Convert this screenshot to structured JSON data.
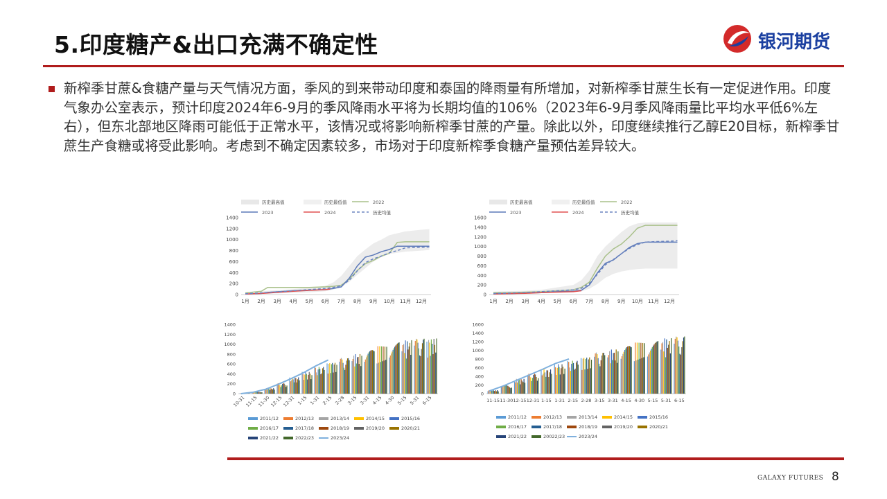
{
  "header": {
    "title": "5.印度糖产&出口充满不确定性",
    "brand": "银河期货"
  },
  "body_text": "新榨季甘蔗&食糖产量与天气情况方面，季风的到来带动印度和泰国的降雨量有所增加，对新榨季甘蔗生长有一定促进作用。印度气象办公室表示，预计印度2024年6-9月的季风降雨水平将为长期均值的106%（2023年6-9月季风降雨量比平均水平低6%左右），但东北部地区降雨可能低于正常水平，该情况或将影响新榨季甘蔗的产量。除此以外，印度继续推行乙醇E20目标，新榨季甘蔗生产食糖或将受此影响。考虑到不确定因素较多，市场对于印度新榨季食糖产量预估差异较大。",
  "footer": {
    "brand_en": "GALAXY FUTURES",
    "page": "8"
  },
  "colors": {
    "accent": "#b01c1c",
    "brand_blue": "#1a3fa0"
  },
  "chart_data": [
    {
      "type": "line",
      "categories": [
        "1月",
        "2月",
        "3月",
        "4月",
        "5月",
        "6月",
        "7月",
        "8月",
        "9月",
        "10月",
        "11月",
        "12月"
      ],
      "ylim": [
        0,
        1400
      ],
      "yticks": [
        0,
        200,
        400,
        600,
        800,
        1000,
        1200,
        1400
      ],
      "legend": [
        "历史最高值",
        "历史最低值",
        "2022",
        "2023",
        "2024",
        "历史均值"
      ],
      "band": {
        "x": [
          0,
          1,
          2,
          3,
          4,
          5,
          5.5,
          6,
          6.5,
          7,
          7.5,
          8,
          8.5,
          9,
          10,
          11,
          11.5
        ],
        "high": [
          40,
          60,
          80,
          100,
          120,
          160,
          220,
          340,
          520,
          700,
          820,
          930,
          1000,
          1080,
          1150,
          1180,
          1190
        ],
        "low": [
          0,
          10,
          20,
          30,
          40,
          60,
          90,
          140,
          230,
          360,
          480,
          600,
          680,
          740,
          780,
          800,
          810
        ]
      },
      "series": [
        {
          "name": "2022",
          "color": "#a9c08a",
          "dash": "",
          "x": [
            0,
            1,
            1.4,
            2,
            3,
            4,
            5,
            5.5,
            6,
            6.5,
            7,
            7.5,
            8,
            8.5,
            9,
            9.5,
            10,
            11,
            11.5
          ],
          "y": [
            30,
            60,
            130,
            130,
            130,
            130,
            140,
            150,
            170,
            280,
            440,
            560,
            620,
            700,
            750,
            950,
            960,
            960,
            960
          ]
        },
        {
          "name": "2023",
          "color": "#5a78b8",
          "dash": "",
          "x": [
            0,
            1,
            1.4,
            2,
            3,
            4,
            5,
            5.5,
            6,
            6.5,
            7,
            7.5,
            8,
            8.5,
            9,
            9.5,
            10,
            11,
            11.5
          ],
          "y": [
            10,
            20,
            40,
            50,
            70,
            80,
            90,
            110,
            140,
            300,
            520,
            680,
            720,
            780,
            820,
            880,
            880,
            880,
            880
          ]
        },
        {
          "name": "2024",
          "color": "#e05050",
          "dash": "",
          "x": [
            0,
            1,
            2,
            3,
            4,
            5,
            5.3
          ],
          "y": [
            10,
            20,
            40,
            60,
            75,
            90,
            100
          ]
        },
        {
          "name": "历史均值",
          "color": "#6a84c0",
          "dash": "4,3",
          "x": [
            0,
            1,
            2,
            3,
            4,
            5,
            5.5,
            6,
            6.5,
            7,
            7.5,
            8,
            8.5,
            9,
            9.5,
            10,
            11,
            11.5
          ],
          "y": [
            15,
            30,
            50,
            70,
            90,
            110,
            130,
            160,
            260,
            430,
            580,
            650,
            700,
            760,
            800,
            850,
            860,
            865
          ]
        }
      ]
    },
    {
      "type": "line",
      "categories": [
        "1月",
        "2月",
        "3月",
        "4月",
        "5月",
        "6月",
        "7月",
        "8月",
        "9月",
        "10月",
        "11月",
        "12月"
      ],
      "ylim": [
        0,
        1600
      ],
      "yticks": [
        0,
        200,
        400,
        600,
        800,
        1000,
        1200,
        1400,
        1600
      ],
      "legend": [
        "历史最高值",
        "历史最低值",
        "2022",
        "2023",
        "2024",
        "历史均值"
      ],
      "band": {
        "x": [
          0,
          1,
          2,
          3,
          4,
          5,
          5.5,
          6,
          6.5,
          7,
          7.5,
          8,
          8.5,
          9,
          9.5,
          10,
          11,
          11.5
        ],
        "high": [
          60,
          70,
          80,
          100,
          150,
          200,
          300,
          500,
          800,
          1000,
          1150,
          1300,
          1420,
          1480,
          1500,
          1500,
          1500,
          1500
        ],
        "low": [
          0,
          10,
          20,
          30,
          40,
          50,
          70,
          120,
          220,
          350,
          430,
          480,
          510,
          530,
          540,
          540,
          540,
          540
        ]
      },
      "series": [
        {
          "name": "2022",
          "color": "#a9c08a",
          "dash": "",
          "x": [
            0,
            1,
            2,
            3,
            4,
            5,
            5.5,
            6,
            6.5,
            7,
            7.5,
            8,
            8.5,
            9,
            9.5,
            10,
            11,
            11.5
          ],
          "y": [
            40,
            40,
            50,
            60,
            80,
            100,
            150,
            260,
            550,
            800,
            950,
            1050,
            1200,
            1380,
            1440,
            1440,
            1440,
            1440
          ]
        },
        {
          "name": "2023",
          "color": "#5a78b8",
          "dash": "",
          "x": [
            0,
            1,
            2,
            3,
            4,
            5,
            5.5,
            6,
            6.5,
            7,
            7.5,
            8,
            8.5,
            9,
            9.5,
            10,
            11,
            11.5
          ],
          "y": [
            20,
            20,
            30,
            40,
            60,
            70,
            90,
            200,
            450,
            650,
            720,
            850,
            980,
            1060,
            1090,
            1090,
            1090,
            1090
          ]
        },
        {
          "name": "2024",
          "color": "#e05050",
          "dash": "",
          "x": [
            0,
            1,
            2,
            3,
            4,
            5,
            5.5
          ],
          "y": [
            10,
            20,
            25,
            40,
            50,
            60,
            80
          ]
        },
        {
          "name": "历史均值",
          "color": "#6a84c0",
          "dash": "4,3",
          "x": [
            0,
            1,
            2,
            3,
            4,
            5,
            5.5,
            6,
            6.5,
            7,
            7.5,
            8,
            8.5,
            9,
            9.5,
            10,
            11,
            11.5
          ],
          "y": [
            20,
            30,
            40,
            60,
            80,
            100,
            130,
            230,
            420,
            620,
            730,
            850,
            960,
            1040,
            1090,
            1100,
            1110,
            1120
          ]
        }
      ]
    },
    {
      "type": "bar",
      "categories": [
        "10-31",
        "11-15",
        "11-30",
        "12-15",
        "12-31",
        "1-15",
        "1-31",
        "2-15",
        "2-28",
        "3-15",
        "3-31",
        "4-15",
        "4-30",
        "5-15",
        "5-31",
        "6-15"
      ],
      "ylim": [
        0,
        1400
      ],
      "yticks": [
        0,
        200,
        400,
        600,
        800,
        1000,
        1200,
        1400
      ],
      "series": [
        {
          "name": "2011/12",
          "color": "#5b9bd5"
        },
        {
          "name": "2012/13",
          "color": "#ed7d31"
        },
        {
          "name": "2013/14",
          "color": "#a5a5a5"
        },
        {
          "name": "2014/15",
          "color": "#ffc000"
        },
        {
          "name": "2015/16",
          "color": "#4472c4"
        },
        {
          "name": "2016/17",
          "color": "#70ad47"
        },
        {
          "name": "2017/18",
          "color": "#255e91"
        },
        {
          "name": "2018/19",
          "color": "#9e480e"
        },
        {
          "name": "2019/20",
          "color": "#636363"
        },
        {
          "name": "2020/21",
          "color": "#997300"
        },
        {
          "name": "2021/22",
          "color": "#264478"
        },
        {
          "name": "2022/23",
          "color": "#43682b"
        },
        {
          "name": "2023/24",
          "color": "#7fb0dd"
        }
      ],
      "totals": [
        5,
        40,
        110,
        210,
        330,
        440,
        540,
        640,
        720,
        800,
        880,
        960,
        1040,
        1080,
        1110,
        1120
      ],
      "line_2023_24": [
        0,
        30,
        90,
        190,
        300,
        420,
        560,
        680
      ]
    },
    {
      "type": "bar",
      "categories": [
        "11-15",
        "11-30",
        "12-15",
        "12-31",
        "1-15",
        "1-31",
        "2-15",
        "2-28",
        "3-15",
        "3-31",
        "4-15",
        "4-30",
        "5-15",
        "5-31",
        "6-15"
      ],
      "ylim": [
        0,
        1600
      ],
      "yticks": [
        0,
        200,
        400,
        600,
        800,
        1000,
        1200,
        1400,
        1600
      ],
      "series": [
        {
          "name": "2011/12",
          "color": "#5b9bd5"
        },
        {
          "name": "2012/13",
          "color": "#ed7d31"
        },
        {
          "name": "2013/14",
          "color": "#a5a5a5"
        },
        {
          "name": "2014/15",
          "color": "#ffc000"
        },
        {
          "name": "2015/16",
          "color": "#4472c4"
        },
        {
          "name": "2016/17",
          "color": "#70ad47"
        },
        {
          "name": "2017/18",
          "color": "#255e91"
        },
        {
          "name": "2018/19",
          "color": "#9e480e"
        },
        {
          "name": "2019/20",
          "color": "#636363"
        },
        {
          "name": "2020/21",
          "color": "#997300"
        },
        {
          "name": "2021/22",
          "color": "#264478"
        },
        {
          "name": "20022/23",
          "color": "#43682b"
        },
        {
          "name": "2023/24",
          "color": "#7fb0dd"
        }
      ],
      "totals": [
        80,
        200,
        340,
        460,
        560,
        680,
        760,
        860,
        950,
        1020,
        1100,
        1180,
        1220,
        1280,
        1320
      ],
      "line_2023_24": [
        60,
        170,
        300,
        430,
        560,
        700,
        800
      ]
    }
  ]
}
